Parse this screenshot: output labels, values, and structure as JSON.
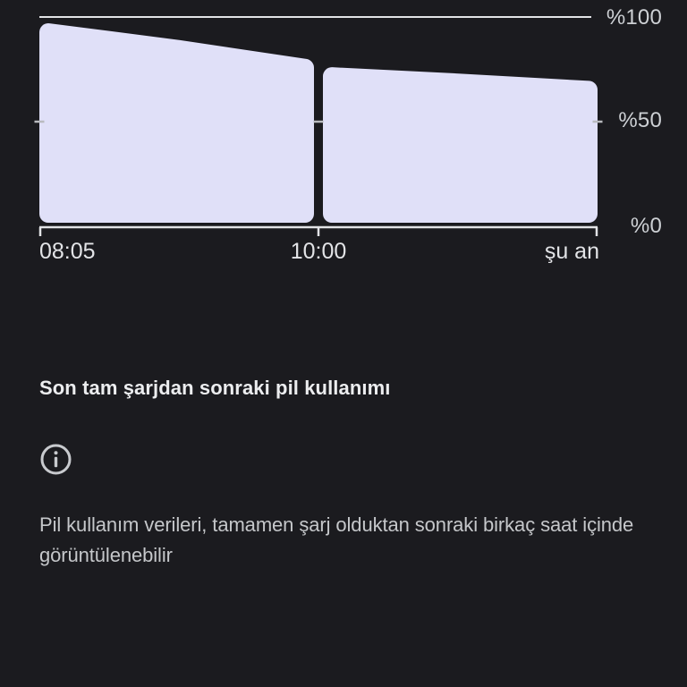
{
  "chart_data": {
    "type": "area",
    "title": "Son tam şarjdan sonraki pil kullanımı",
    "series_name": "battery-level-percent",
    "ylim": [
      0,
      100
    ],
    "grid": "top-line-only",
    "legend": "none",
    "y_ticks": [
      {
        "label": "%100",
        "value": 100
      },
      {
        "label": "%50",
        "value": 50
      },
      {
        "label": "%0",
        "value": 0
      }
    ],
    "x_ticks": [
      {
        "label": "08:05",
        "pos": 0
      },
      {
        "label": "10:00",
        "pos": 0.5
      },
      {
        "label": "şu an",
        "pos": 1
      }
    ],
    "mid_tick_value": 50,
    "top_line_value": 100,
    "segments": [
      {
        "name": "segment-0805-1000",
        "points": [
          [
            0,
            97
          ],
          [
            0.25,
            89
          ],
          [
            0.5,
            80
          ]
        ]
      },
      {
        "name": "segment-1000-now",
        "points": [
          [
            0.5,
            76
          ],
          [
            0.75,
            73
          ],
          [
            1,
            69.5
          ]
        ]
      }
    ],
    "fill_color": "#E0E0F8"
  },
  "section": {
    "title": "Son tam şarjdan sonraki pil kullanımı",
    "info_note": "Pil kullanım verileri, tamamen şarj olduktan sonraki birkaç saat içinde görüntülenebilir"
  },
  "icons": {
    "info": "info-icon"
  },
  "colors": {
    "background": "#1B1B1F",
    "fill": "#E0E0F8",
    "axis": "#E2E3E6",
    "tick_50": "#B9BBBF",
    "y_label": "#CDD0D4",
    "x_label": "#E3E4E7",
    "title_text": "#ECEDEF",
    "note_text": "#C5C7CA",
    "icon": "#C8CACE"
  }
}
